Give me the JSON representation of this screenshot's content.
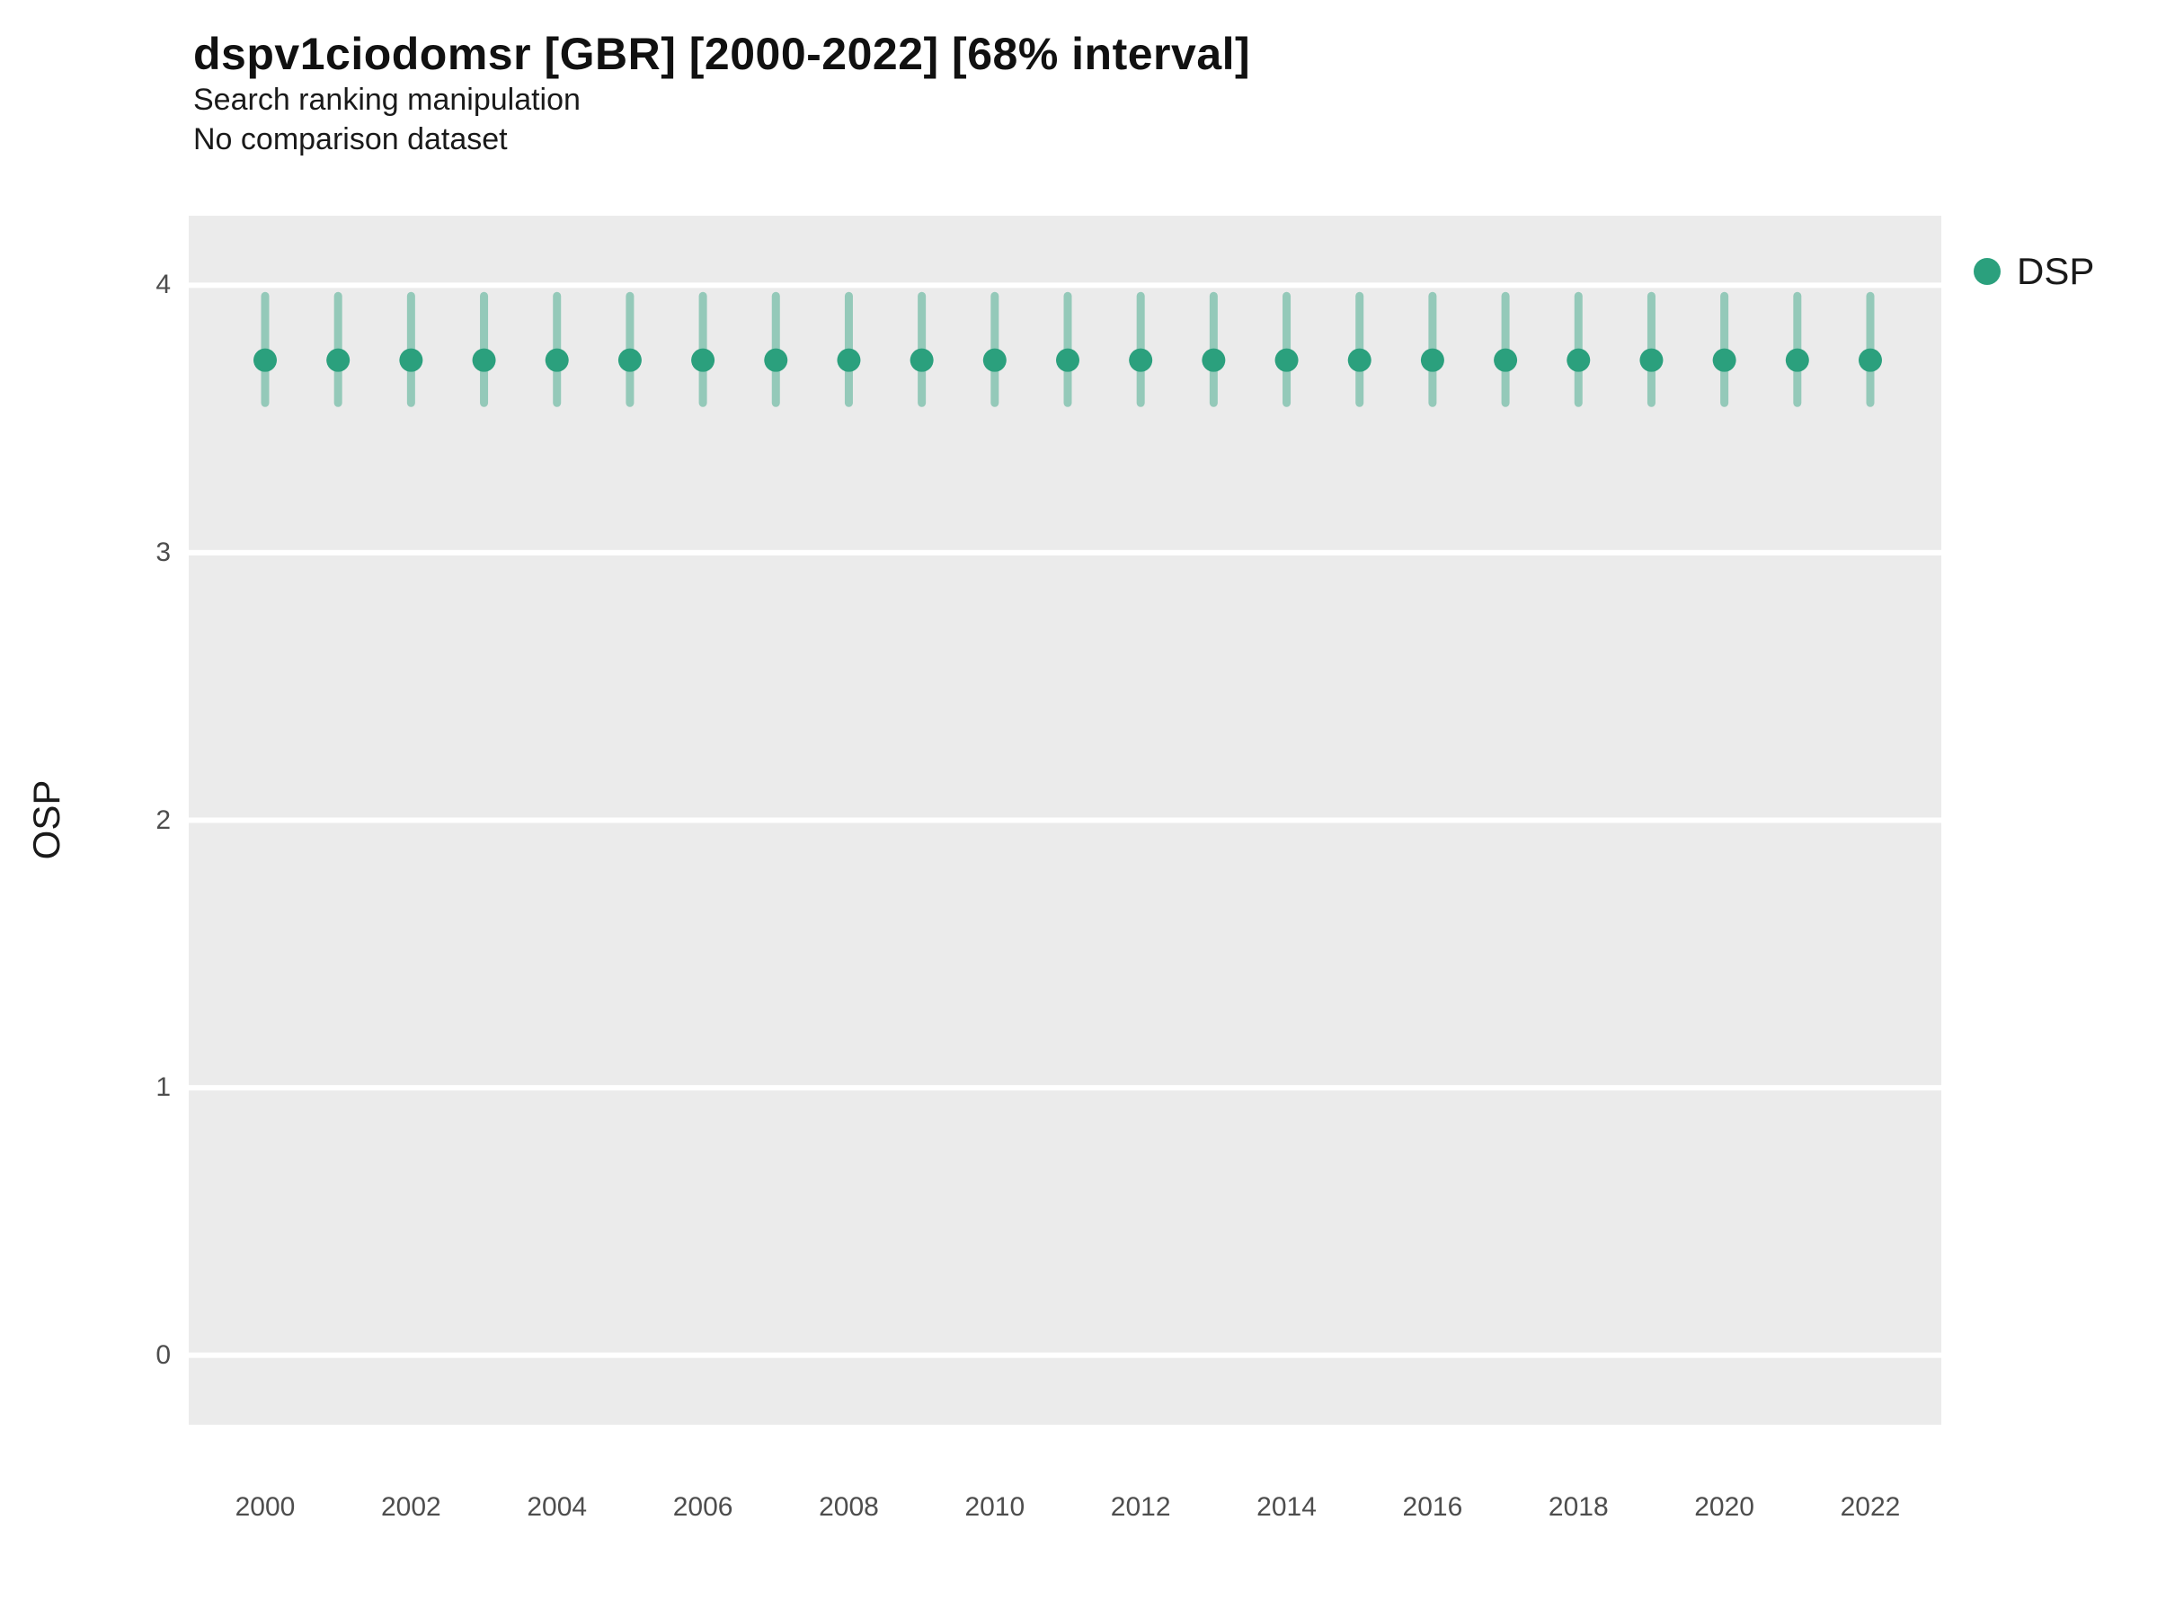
{
  "header": {
    "title": "dspv1ciodomsr [GBR] [2000-2022] [68% interval]",
    "subtitle1": "Search ranking manipulation",
    "subtitle2": "No comparison dataset"
  },
  "axes": {
    "y_label": "OSP",
    "y_ticks": [
      0,
      1,
      2,
      3,
      4
    ],
    "y_domain": [
      -0.26,
      4.26
    ],
    "x_tick_years": [
      2000,
      2002,
      2004,
      2006,
      2008,
      2010,
      2012,
      2014,
      2016,
      2018,
      2020,
      2022
    ]
  },
  "legend": {
    "items": [
      {
        "label": "DSP",
        "color": "#2BA07D"
      }
    ]
  },
  "colors": {
    "point": "#2BA07D",
    "interval": "rgba(43,160,125,0.45)",
    "panel_bg": "#ebebeb",
    "gridline": "#ffffff"
  },
  "chart_data": {
    "type": "scatter",
    "title": "dspv1ciodomsr [GBR] [2000-2022] [68% interval]",
    "subtitle": "Search ranking manipulation",
    "note": "No comparison dataset",
    "interval": "68%",
    "xlabel": "",
    "ylabel": "OSP",
    "ylim": [
      -0.26,
      4.26
    ],
    "x": [
      2000,
      2001,
      2002,
      2003,
      2004,
      2005,
      2006,
      2007,
      2008,
      2009,
      2010,
      2011,
      2012,
      2013,
      2014,
      2015,
      2016,
      2017,
      2018,
      2019,
      2020,
      2021,
      2022
    ],
    "series": [
      {
        "name": "DSP",
        "values": [
          3.72,
          3.72,
          3.72,
          3.72,
          3.72,
          3.72,
          3.72,
          3.72,
          3.72,
          3.72,
          3.72,
          3.72,
          3.72,
          3.72,
          3.72,
          3.72,
          3.72,
          3.72,
          3.72,
          3.72,
          3.72,
          3.72,
          3.72
        ],
        "interval_low": [
          3.56,
          3.56,
          3.56,
          3.56,
          3.56,
          3.56,
          3.56,
          3.56,
          3.56,
          3.56,
          3.56,
          3.56,
          3.56,
          3.56,
          3.56,
          3.56,
          3.56,
          3.56,
          3.56,
          3.56,
          3.56,
          3.56,
          3.56
        ],
        "interval_high": [
          3.96,
          3.96,
          3.96,
          3.96,
          3.96,
          3.96,
          3.96,
          3.96,
          3.96,
          3.96,
          3.96,
          3.96,
          3.96,
          3.96,
          3.96,
          3.96,
          3.96,
          3.96,
          3.96,
          3.96,
          3.96,
          3.96,
          3.96
        ]
      }
    ],
    "legend_position": "right",
    "grid": "major-horizontal"
  }
}
